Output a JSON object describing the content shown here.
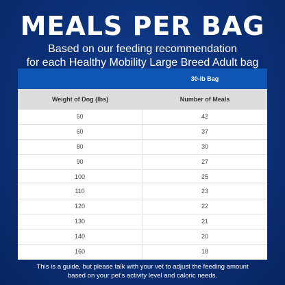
{
  "title": "MEALS PER BAG",
  "subtitle": {
    "line1": "Based on our feeding recommendation",
    "line2": "for each Healthy Mobility Large Breed Adult bag"
  },
  "table": {
    "bag_label": "30-lb Bag",
    "headers": [
      "Weight of Dog (lbs)",
      "Number of Meals"
    ],
    "rows": [
      [
        "50",
        "42"
      ],
      [
        "60",
        "37"
      ],
      [
        "80",
        "30"
      ],
      [
        "90",
        "27"
      ],
      [
        "100",
        "25"
      ],
      [
        "110",
        "23"
      ],
      [
        "120",
        "22"
      ],
      [
        "130",
        "21"
      ],
      [
        "140",
        "20"
      ],
      [
        "160",
        "18"
      ]
    ]
  },
  "footer": {
    "line1": "This is a guide, but please talk with your vet to adjust the feeding amount",
    "line2": "based on your pet's activity level and caloric needs."
  },
  "colors": {
    "background": "#0b2f76",
    "bag_header": "#0f56b3",
    "column_header": "#dcdcdc"
  }
}
